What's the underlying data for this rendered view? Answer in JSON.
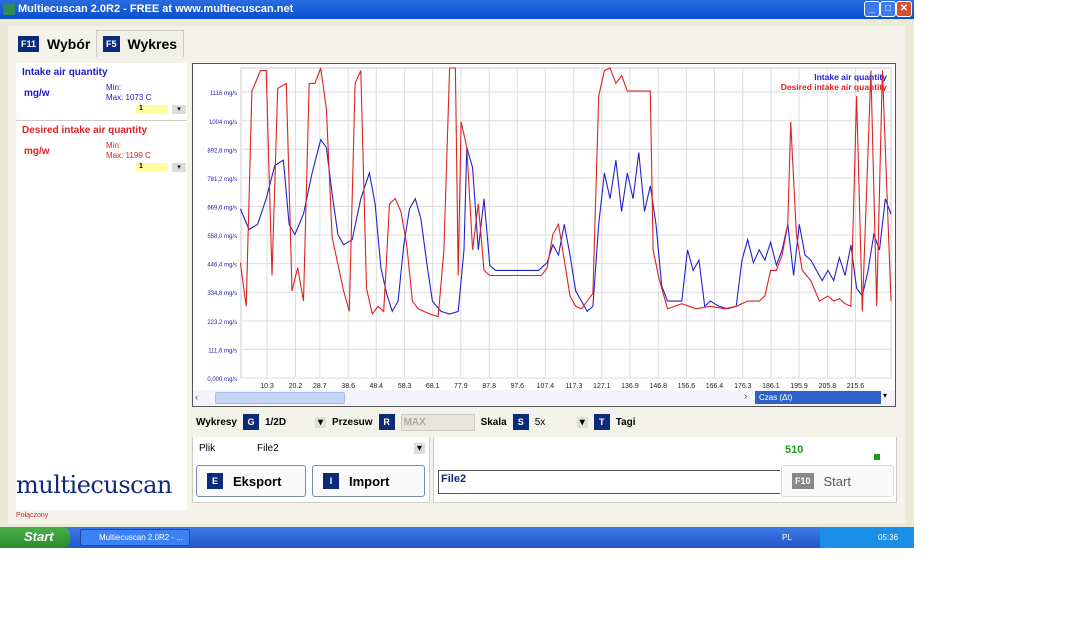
{
  "window": {
    "title": "Multiecuscan 2.0R2 - FREE at www.multiecuscan.net",
    "controls": [
      "_",
      "□",
      "✕"
    ]
  },
  "tabs": [
    {
      "key": "F11",
      "label": "Wybór"
    },
    {
      "key": "F5",
      "label": "Wykres"
    }
  ],
  "signals": [
    {
      "name": "Intake air quantity",
      "unit": "mg/w",
      "min": "Min:",
      "max": "Max: 1073 C",
      "select": "1",
      "color": "#1a1acc"
    },
    {
      "name": "Desired intake air quantity",
      "unit": "mg/w",
      "min": "Min:",
      "max": "Max: 1199 C",
      "select": "1",
      "color": "#dd2222"
    }
  ],
  "logo": "multiecuscan",
  "chart_data": {
    "type": "line",
    "legend": [
      "Intake air quantity",
      "Desired intake air quantity"
    ],
    "legend_placement": "top-right",
    "grid": true,
    "xlim": [
      1.2,
      228
    ],
    "ylim": [
      0,
      1210
    ],
    "y_ticks": [
      0,
      111.6,
      223.2,
      334.8,
      446.4,
      558.0,
      669.6,
      781.2,
      892.8,
      1004,
      1116
    ],
    "y_tick_labels": [
      "0,000 mg/s",
      "111,6 mg/s",
      "223,2 mg/s",
      "334,8 mg/s",
      "446,4 mg/s",
      "558,0 mg/s",
      "669,6 mg/s",
      "781,2 mg/s",
      "892,8 mg/s",
      "1004 mg/s",
      "1116 mg/s"
    ],
    "x_ticks": [
      10.3,
      20.2,
      28.7,
      38.6,
      48.4,
      58.3,
      68.1,
      77.9,
      87.8,
      97.6,
      107.4,
      117.3,
      127.1,
      136.9,
      146.8,
      156.6,
      166.4,
      176.3,
      186.1,
      195.9,
      205.8,
      215.6
    ],
    "x_tick_labels": [
      "10.3",
      "20.2",
      "28.7",
      "38.6",
      "48.4",
      "58.3",
      "68.1",
      "77.9",
      "87.8",
      "97.6",
      "107.4",
      "117.3",
      "127.1",
      "136.9",
      "146.8",
      "156.6",
      "166.4",
      "176.3",
      "186.1",
      "195.9",
      "205.8",
      "215.6"
    ],
    "series": [
      {
        "name": "Intake air quantity",
        "color": "#2222cc",
        "x": [
          1,
          4,
          7,
          10,
          13,
          16,
          18,
          20,
          23,
          26,
          29,
          31,
          33,
          35,
          37,
          40,
          43,
          46,
          48,
          50,
          52,
          54,
          56,
          58,
          60,
          62,
          64,
          66,
          68,
          71,
          74,
          77,
          79,
          80,
          82,
          84,
          86,
          88,
          90,
          93,
          96,
          99,
          102,
          105,
          108,
          110,
          112,
          114,
          116,
          118,
          120,
          122,
          124,
          126,
          128,
          130,
          132,
          134,
          136,
          138,
          140,
          142,
          144,
          146,
          148,
          150,
          152,
          155,
          157,
          159,
          161,
          163,
          165,
          168,
          171,
          174,
          176,
          178,
          180,
          182,
          184,
          186,
          188,
          190,
          192,
          194,
          196,
          198,
          200,
          202,
          204,
          206,
          208,
          210,
          212,
          214,
          216,
          218,
          220,
          222,
          224,
          226,
          228
        ],
        "y": [
          660,
          580,
          600,
          700,
          830,
          850,
          600,
          560,
          640,
          800,
          930,
          900,
          720,
          560,
          520,
          540,
          700,
          800,
          680,
          430,
          330,
          260,
          300,
          520,
          660,
          700,
          620,
          450,
          300,
          260,
          250,
          260,
          500,
          900,
          820,
          500,
          700,
          440,
          420,
          420,
          420,
          420,
          420,
          420,
          450,
          520,
          480,
          600,
          480,
          340,
          300,
          260,
          280,
          600,
          800,
          700,
          850,
          650,
          800,
          700,
          880,
          650,
          750,
          600,
          360,
          300,
          300,
          300,
          500,
          420,
          460,
          280,
          300,
          280,
          270,
          280,
          460,
          540,
          450,
          500,
          460,
          530,
          440,
          500,
          600,
          400,
          600,
          480,
          460,
          420,
          380,
          420,
          380,
          470,
          400,
          520,
          350,
          320,
          420,
          560,
          500,
          700,
          640
        ]
      },
      {
        "name": "Desired intake air quantity",
        "color": "#dd2222",
        "x": [
          1,
          3,
          5,
          8,
          10,
          12,
          14,
          17,
          19,
          21,
          23,
          25,
          27,
          29,
          31,
          33,
          37,
          39,
          41,
          43,
          45,
          47,
          49,
          51,
          53,
          55,
          57,
          59,
          61,
          63,
          67,
          70,
          72,
          74,
          76,
          77,
          78,
          80,
          82,
          84,
          86,
          88,
          92,
          100,
          106,
          108,
          110,
          112,
          114,
          116,
          118,
          120,
          122,
          124,
          126,
          128,
          130,
          132,
          134,
          136,
          137,
          144,
          145,
          147,
          150,
          155,
          160,
          165,
          170,
          174,
          178,
          182,
          184,
          186,
          188,
          190,
          192,
          193,
          195,
          197,
          200,
          203,
          206,
          208,
          210,
          212,
          214,
          216,
          218,
          221,
          223,
          225,
          228
        ],
        "y": [
          450,
          280,
          1120,
          1200,
          1200,
          400,
          1130,
          1150,
          340,
          430,
          300,
          1150,
          1150,
          1210,
          1050,
          550,
          340,
          260,
          1150,
          1200,
          350,
          250,
          280,
          260,
          680,
          700,
          650,
          520,
          300,
          270,
          250,
          240,
          500,
          1210,
          1210,
          400,
          1000,
          900,
          500,
          680,
          420,
          400,
          400,
          400,
          400,
          430,
          560,
          600,
          460,
          320,
          280,
          270,
          300,
          330,
          1100,
          1200,
          1210,
          1150,
          1180,
          1120,
          1120,
          1120,
          500,
          390,
          270,
          290,
          270,
          280,
          270,
          280,
          300,
          300,
          320,
          420,
          420,
          480,
          600,
          1000,
          560,
          420,
          380,
          300,
          320,
          300,
          310,
          290,
          280,
          1100,
          260,
          1200,
          280,
          1200,
          300
        ]
      }
    ],
    "x_axis_select": "Czas (Δt)"
  },
  "controls": {
    "wykresy_label": "Wykresy",
    "wykresy_key": "G",
    "wykresy_value": "1/2D",
    "przesuw_label": "Przesuw",
    "przesuw_key": "R",
    "przesuw_value": "MAX",
    "skala_label": "Skala",
    "skala_key": "S",
    "skala_value": "5x",
    "tagi_key": "T",
    "tagi_label": "Tagi"
  },
  "file": {
    "label": "Plik",
    "value": "File2",
    "export_key": "E",
    "export_label": "Eksport",
    "import_key": "I",
    "import_label": "Import"
  },
  "record": {
    "count": "510",
    "filename": "File2",
    "start_key": "F10",
    "start_label": "Start",
    "status_color": "#1a9a1a"
  },
  "status": "Połączony",
  "taskbar": {
    "start": "Start",
    "task": "Multiecuscan 2.0R2 - ...",
    "lang": "PL",
    "clock": "05:36"
  }
}
